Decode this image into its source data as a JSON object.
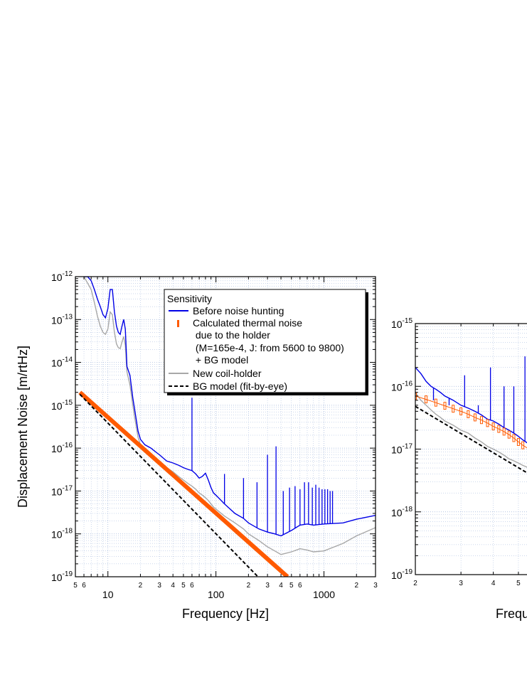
{
  "colors": {
    "before": "#0000e6",
    "thermal": "#ff5a00",
    "newcoil": "#a8a8a8",
    "bg_model": "#000000",
    "grid": "#9ab0d8"
  },
  "chart_data": [
    {
      "type": "line",
      "xlabel": "Frequency [Hz]",
      "ylabel": "Displacement Noise [m/rtHz]",
      "x_scale": "log",
      "y_scale": "log",
      "xlim": [
        5,
        3000
      ],
      "ylim": [
        1e-19,
        1e-12
      ],
      "grid": true,
      "legend_position": "top-right",
      "y_tick_labels": [
        {
          "base": "10",
          "exp": "-19",
          "value": 1e-19
        },
        {
          "base": "10",
          "exp": "-18",
          "value": 1e-18
        },
        {
          "base": "10",
          "exp": "-17",
          "value": 1e-17
        },
        {
          "base": "10",
          "exp": "-16",
          "value": 1e-16
        },
        {
          "base": "10",
          "exp": "-15",
          "value": 1e-15
        },
        {
          "base": "10",
          "exp": "-14",
          "value": 1e-14
        },
        {
          "base": "10",
          "exp": "-13",
          "value": 1e-13
        },
        {
          "base": "10",
          "exp": "-12",
          "value": 1e-12
        }
      ],
      "x_major_ticks": [
        {
          "label": "10",
          "value": 10
        },
        {
          "label": "100",
          "value": 100
        },
        {
          "label": "1000",
          "value": 1000
        }
      ],
      "x_minor_ticks": [
        {
          "label": "5",
          "value": 5
        },
        {
          "label": "6",
          "value": 6
        },
        {
          "label": "2",
          "value": 20
        },
        {
          "label": "3",
          "value": 30
        },
        {
          "label": "4",
          "value": 40
        },
        {
          "label": "5",
          "value": 50
        },
        {
          "label": "6",
          "value": 60
        },
        {
          "label": "2",
          "value": 200
        },
        {
          "label": "3",
          "value": 300
        },
        {
          "label": "4",
          "value": 400
        },
        {
          "label": "5",
          "value": 500
        },
        {
          "label": "6",
          "value": 600
        },
        {
          "label": "2",
          "value": 2000
        },
        {
          "label": "3",
          "value": 3000
        }
      ],
      "legend": {
        "title": "Sensitivity",
        "entries": [
          {
            "key": "before",
            "label_lines": [
              "Before noise hunting"
            ]
          },
          {
            "key": "thermal",
            "label_lines": [
              "Calculated thermal noise",
              " due to the holder",
              " (M=165e-4, J: from 5600 to 9800)",
              " + BG model"
            ]
          },
          {
            "key": "newcoil",
            "label_lines": [
              "New coil-holder"
            ]
          },
          {
            "key": "bg_model",
            "label_lines": [
              "BG model (fit-by-eye)"
            ]
          }
        ]
      },
      "series": [
        {
          "name": "Before noise hunting",
          "key": "before",
          "x": [
            6,
            6.5,
            7,
            7.5,
            8,
            8.5,
            9,
            9.5,
            10,
            10.5,
            11,
            11.5,
            12,
            12.5,
            13,
            13.5,
            14,
            14.5,
            15,
            16,
            17,
            18,
            19,
            20,
            22,
            25,
            28,
            30,
            35,
            40,
            45,
            50,
            55,
            60,
            65,
            70,
            75,
            80,
            85,
            90,
            95,
            100,
            120,
            150,
            180,
            200,
            250,
            300,
            350,
            400,
            500,
            600,
            700,
            800,
            1000,
            1500,
            2000,
            3000
          ],
          "y": [
            1e-12,
            1e-12,
            8e-13,
            5e-13,
            3e-13,
            2e-13,
            1.3e-13,
            1.1e-13,
            1.8e-13,
            5e-13,
            5e-13,
            1.5e-13,
            7e-14,
            5e-14,
            4.5e-14,
            7e-14,
            1e-13,
            6e-14,
            8e-15,
            5e-15,
            1.5e-15,
            6e-16,
            2.5e-16,
            1.6e-16,
            1.2e-16,
            1e-16,
            8e-17,
            7e-17,
            5e-17,
            4.5e-17,
            4e-17,
            3.5e-17,
            3.2e-17,
            3e-17,
            2.5e-17,
            2e-17,
            2.2e-17,
            2.6e-17,
            1.8e-17,
            1.2e-17,
            9e-18,
            8e-18,
            5e-18,
            3e-18,
            2.3e-18,
            1.8e-18,
            1.3e-18,
            1.1e-18,
            1e-18,
            9e-19,
            1.2e-18,
            1.6e-18,
            1.7e-18,
            1.6e-18,
            1.7e-18,
            1.8e-18,
            2.2e-18,
            2.7e-18
          ]
        },
        {
          "name": "New coil-holder",
          "key": "newcoil",
          "x": [
            6,
            6.5,
            7,
            7.5,
            8,
            8.5,
            9,
            9.5,
            10,
            10.5,
            11,
            11.5,
            12,
            12.5,
            13,
            13.5,
            14,
            14.5,
            15,
            16,
            17,
            18,
            19,
            20,
            22,
            25,
            28,
            30,
            35,
            40,
            45,
            50,
            55,
            60,
            65,
            70,
            75,
            80,
            85,
            90,
            95,
            100,
            120,
            150,
            180,
            200,
            250,
            300,
            350,
            400,
            500,
            600,
            700,
            800,
            1000,
            1500,
            2000,
            3000
          ],
          "y": [
            1e-12,
            7e-13,
            5e-13,
            2.5e-13,
            1.2e-13,
            7e-14,
            5e-14,
            4.5e-14,
            6e-14,
            1.5e-13,
            1.3e-13,
            5e-14,
            2.7e-14,
            2.2e-14,
            2.1e-14,
            3e-14,
            4e-14,
            2.5e-14,
            6e-15,
            3e-15,
            1e-15,
            4e-16,
            1.8e-16,
            1.2e-16,
            9e-17,
            7e-17,
            5.5e-17,
            5e-17,
            3.5e-17,
            2.8e-17,
            2.2e-17,
            1.8e-17,
            1.5e-17,
            1.3e-17,
            1.1e-17,
            9e-18,
            8e-18,
            7e-18,
            6e-18,
            5e-18,
            4.2e-18,
            3.8e-18,
            2.6e-18,
            1.8e-18,
            1.3e-18,
            1e-18,
            7e-19,
            5e-19,
            4e-19,
            3.3e-19,
            3.8e-19,
            4.5e-19,
            4.2e-19,
            3.8e-19,
            4e-19,
            6e-19,
            9e-19,
            1.4e-18
          ]
        },
        {
          "name": "Calculated thermal noise due to the holder (M=165e-4, J: from 5600 to 9800) + BG model",
          "key": "thermal",
          "x": [
            5.5,
            460
          ],
          "y": [
            2e-15,
            1e-19
          ]
        },
        {
          "name": "BG model (fit-by-eye)",
          "key": "bg_model",
          "x": [
            5.5,
            245
          ],
          "y": [
            1.8e-15,
            1e-19
          ]
        }
      ],
      "spikes": {
        "key": "before",
        "x": [
          60,
          120,
          180,
          240,
          300,
          360,
          420,
          480,
          540,
          600,
          660,
          720,
          780,
          840,
          900,
          960,
          1020,
          1080,
          1140,
          1200
        ],
        "peaks": [
          1.5e-15,
          2.5e-17,
          2e-17,
          1.6e-17,
          7e-17,
          1.1e-16,
          1e-17,
          1.2e-17,
          1.3e-17,
          1.1e-17,
          1.6e-17,
          1.6e-17,
          1.2e-17,
          1.4e-17,
          1.2e-17,
          1.1e-17,
          1.1e-17,
          1.1e-17,
          1e-17,
          1e-17
        ]
      }
    },
    {
      "type": "line",
      "xlabel": "Frequ",
      "x_scale": "log",
      "y_scale": "log",
      "xlim": [
        2,
        5.5
      ],
      "ylim": [
        1e-19,
        1e-15
      ],
      "grid": true,
      "y_tick_labels": [
        {
          "base": "10",
          "exp": "-19",
          "value": 1e-19
        },
        {
          "base": "10",
          "exp": "-18",
          "value": 1e-18
        },
        {
          "base": "10",
          "exp": "-17",
          "value": 1e-17
        },
        {
          "base": "10",
          "exp": "-16",
          "value": 1e-16
        },
        {
          "base": "10",
          "exp": "-15",
          "value": 1e-15
        }
      ],
      "x_minor_ticks": [
        {
          "label": "2",
          "value": 2
        },
        {
          "label": "3",
          "value": 3
        },
        {
          "label": "4",
          "value": 4
        },
        {
          "label": "5",
          "value": 5
        }
      ],
      "series": [
        {
          "name": "Before noise hunting",
          "key": "before",
          "x": [
            2,
            2.1,
            2.2,
            2.3,
            2.4,
            2.5,
            2.6,
            2.8,
            3,
            3.2,
            3.4,
            3.6,
            3.8,
            4,
            4.2,
            4.4,
            4.6,
            4.8,
            5,
            5.2,
            5.5
          ],
          "y": [
            2e-16,
            1.6e-16,
            1.2e-16,
            1e-16,
            9e-17,
            8e-17,
            7e-17,
            6e-17,
            5e-17,
            4.5e-17,
            4e-17,
            3.5e-17,
            3e-17,
            2.8e-17,
            2.5e-17,
            2.2e-17,
            2e-17,
            1.8e-17,
            1.6e-17,
            1.4e-17,
            1.2e-17
          ]
        },
        {
          "name": "New coil-holder",
          "key": "newcoil",
          "x": [
            2,
            2.1,
            2.2,
            2.3,
            2.4,
            2.5,
            2.6,
            2.8,
            3,
            3.2,
            3.4,
            3.6,
            3.8,
            4,
            4.2,
            4.4,
            4.6,
            4.8,
            5,
            5.2,
            5.5
          ],
          "y": [
            8e-17,
            6e-17,
            5e-17,
            4.2e-17,
            3.6e-17,
            3.2e-17,
            2.8e-17,
            2.4e-17,
            2e-17,
            1.8e-17,
            1.5e-17,
            1.3e-17,
            1.1e-17,
            1e-17,
            9e-18,
            8e-18,
            7e-18,
            6.5e-18,
            6e-18,
            5.5e-18,
            5e-18
          ]
        },
        {
          "name": "Calculated thermal noise",
          "key": "thermal",
          "x": [
            2,
            2.2,
            2.4,
            2.6,
            2.8,
            3,
            3.2,
            3.4,
            3.6,
            3.8,
            4,
            4.2,
            4.4,
            4.6,
            4.8,
            5,
            5.2,
            5.5
          ],
          "y": [
            7e-17,
            6.2e-17,
            5.5e-17,
            4.9e-17,
            4.4e-17,
            4e-17,
            3.6e-17,
            3.2e-17,
            2.9e-17,
            2.6e-17,
            2.3e-17,
            2.1e-17,
            1.9e-17,
            1.7e-17,
            1.5e-17,
            1.3e-17,
            1.15e-17,
            1e-17
          ]
        },
        {
          "name": "BG model (fit-by-eye)",
          "key": "bg_model",
          "x": [
            2,
            5.5
          ],
          "y": [
            4.8e-17,
            4e-18
          ]
        }
      ],
      "spikes": {
        "key": "before",
        "x": [
          2.35,
          2.7,
          3.1,
          3.5,
          3.9,
          4.4,
          4.8,
          5.3
        ],
        "peaks": [
          6e-17,
          5e-17,
          1.5e-16,
          5e-17,
          2e-16,
          1e-16,
          1e-16,
          3e-16
        ]
      }
    }
  ]
}
